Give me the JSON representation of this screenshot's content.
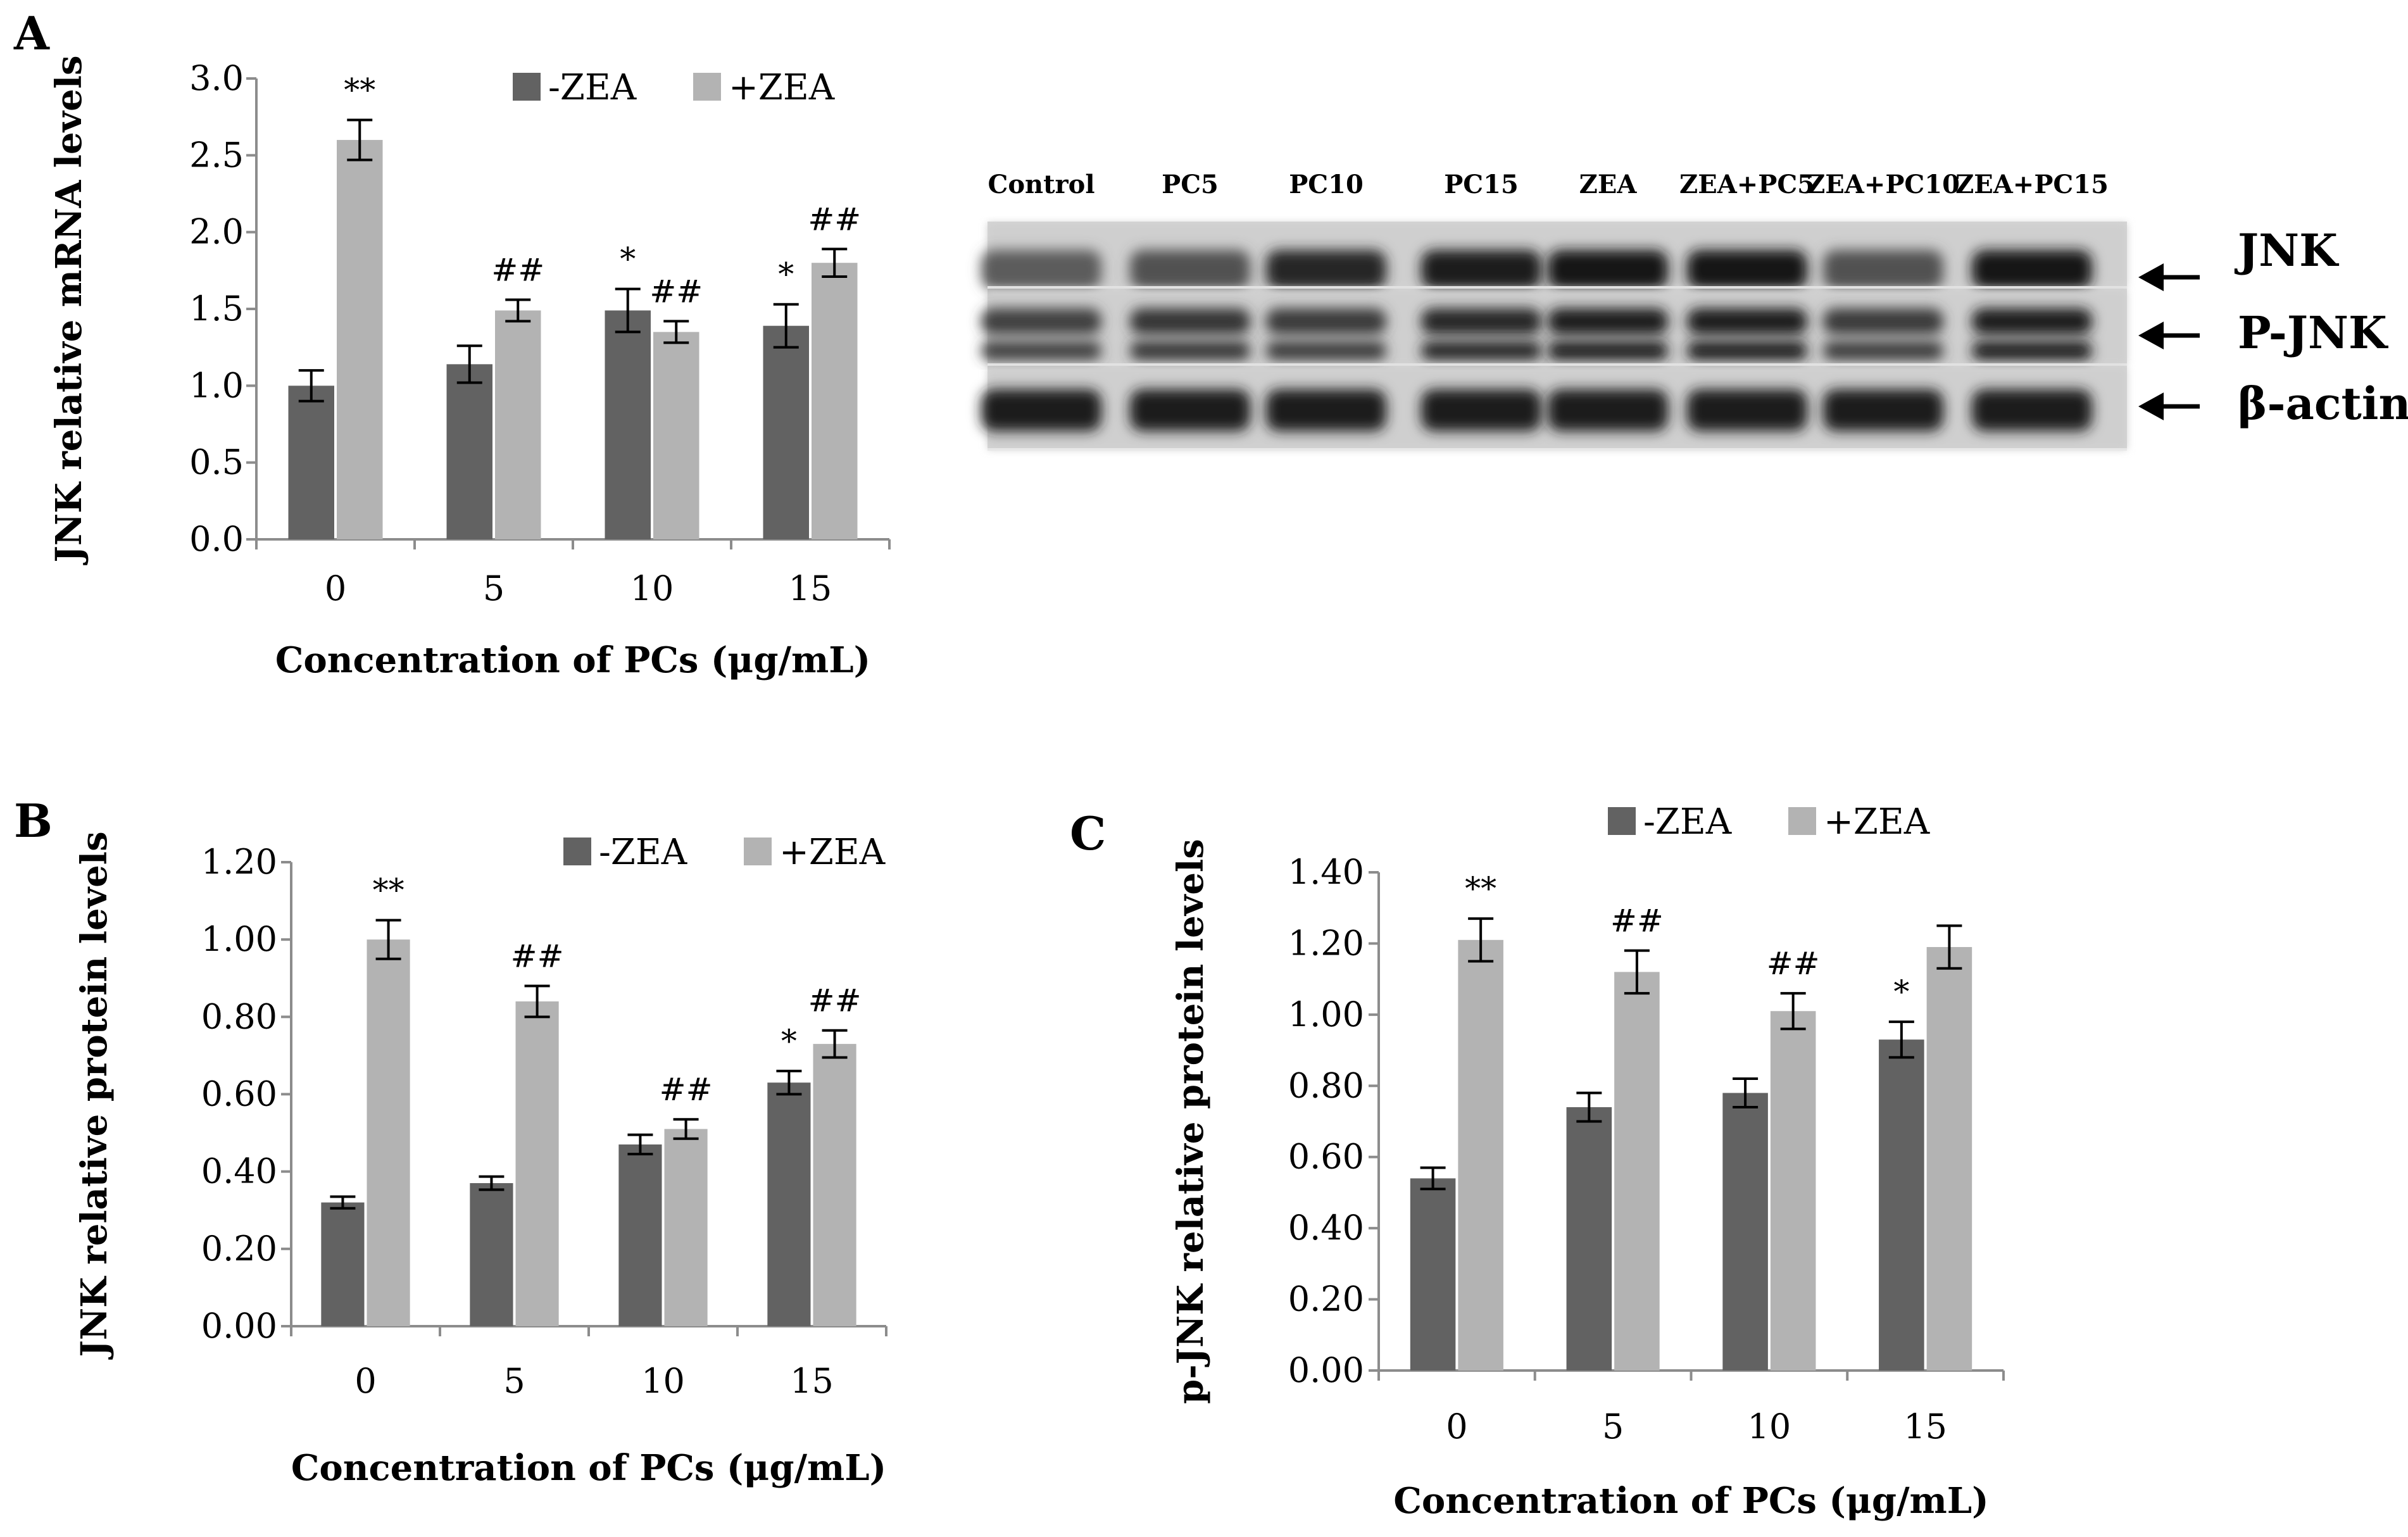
{
  "colors": {
    "neg": "#626262",
    "pos": "#b3b3b3",
    "axis": "#8c8c8c",
    "ink": "#000000"
  },
  "blot": {
    "lanes": [
      "Control",
      "PC5",
      "PC10",
      "PC15",
      "ZEA",
      "ZEA+PC5",
      "ZEA+PC10",
      "ZEA+PC15"
    ],
    "bands": [
      "JNK",
      "P-JNK",
      "β-actin"
    ]
  },
  "chart_data": [
    {
      "panel": "A",
      "type": "bar",
      "categories": [
        "0",
        "5",
        "10",
        "15"
      ],
      "xlabel": "Concentration of PCs (μg/mL)",
      "ylabel": "JNK relative mRNA levels",
      "ylim": [
        0,
        3.0
      ],
      "yticks": [
        "0.0",
        "0.5",
        "1.0",
        "1.5",
        "2.0",
        "2.5",
        "3.0"
      ],
      "legend": "top",
      "series": [
        {
          "name": "-ZEA",
          "values": [
            1.0,
            1.14,
            1.49,
            1.39
          ],
          "errors": [
            0.1,
            0.12,
            0.14,
            0.14
          ],
          "annotations": [
            "",
            "",
            "*",
            "*"
          ]
        },
        {
          "name": "+ZEA",
          "values": [
            2.6,
            1.49,
            1.35,
            1.8
          ],
          "errors": [
            0.13,
            0.07,
            0.07,
            0.09
          ],
          "annotations": [
            "**",
            "##",
            "##",
            "##"
          ]
        }
      ]
    },
    {
      "panel": "B",
      "type": "bar",
      "categories": [
        "0",
        "5",
        "10",
        "15"
      ],
      "xlabel": "Concentration of  PCs (μg/mL)",
      "ylabel": "JNK relative protein levels",
      "ylim": [
        0,
        1.2
      ],
      "yticks": [
        "0.00",
        "0.20",
        "0.40",
        "0.60",
        "0.80",
        "1.00",
        "1.20"
      ],
      "legend": "top",
      "series": [
        {
          "name": "-ZEA",
          "values": [
            0.32,
            0.37,
            0.47,
            0.63
          ],
          "errors": [
            0.015,
            0.017,
            0.025,
            0.03
          ],
          "annotations": [
            "",
            "",
            "",
            "*"
          ]
        },
        {
          "name": "+ZEA",
          "values": [
            1.0,
            0.84,
            0.51,
            0.73
          ],
          "errors": [
            0.05,
            0.04,
            0.025,
            0.035
          ],
          "annotations": [
            "**",
            "##",
            "##",
            "##"
          ]
        }
      ]
    },
    {
      "panel": "C",
      "type": "bar",
      "categories": [
        "0",
        "5",
        "10",
        "15"
      ],
      "xlabel": "Concentration of PCs (μg/mL)",
      "ylabel": "p-JNK relative protein levels",
      "ylim": [
        0,
        1.4
      ],
      "yticks": [
        "0.00",
        "0.20",
        "0.40",
        "0.60",
        "0.80",
        "1.00",
        "1.20",
        "1.40"
      ],
      "legend": "top",
      "series": [
        {
          "name": "-ZEA",
          "values": [
            0.54,
            0.74,
            0.78,
            0.93
          ],
          "errors": [
            0.03,
            0.04,
            0.04,
            0.05
          ],
          "annotations": [
            "",
            "",
            "",
            "*"
          ]
        },
        {
          "name": "+ZEA",
          "values": [
            1.21,
            1.12,
            1.01,
            1.19
          ],
          "errors": [
            0.06,
            0.06,
            0.05,
            0.06
          ],
          "annotations": [
            "**",
            "##",
            "##",
            ""
          ]
        }
      ]
    }
  ]
}
